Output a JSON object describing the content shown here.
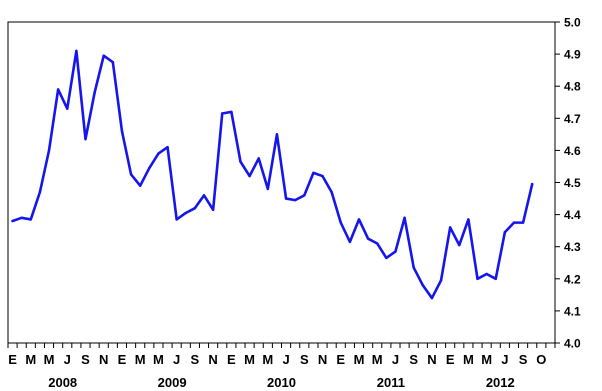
{
  "chart_data": {
    "type": "line",
    "title": "",
    "xlabel": "",
    "ylabel": "",
    "ylim": [
      4.0,
      5.0
    ],
    "y_ticks": [
      "4.0",
      "4.1",
      "4.2",
      "4.3",
      "4.4",
      "4.5",
      "4.6",
      "4.7",
      "4.8",
      "4.9",
      "5.0"
    ],
    "y_axis_side": "right",
    "grid": false,
    "line_color": "#1515ee",
    "month_labels": [
      "E",
      "M",
      "M",
      "J",
      "S",
      "N",
      "E",
      "M",
      "M",
      "J",
      "S",
      "N",
      "E",
      "M",
      "M",
      "J",
      "S",
      "N",
      "E",
      "M",
      "M",
      "J",
      "S",
      "N",
      "E",
      "M",
      "M",
      "J",
      "S",
      "O"
    ],
    "year_labels": [
      "2008",
      "2009",
      "2010",
      "2011",
      "2012"
    ],
    "series": [
      {
        "values": [
          4.38,
          4.39,
          4.385,
          4.47,
          4.6,
          4.79,
          4.73,
          4.91,
          4.635,
          4.78,
          4.895,
          4.875,
          4.66,
          4.525,
          4.49,
          4.545,
          4.59,
          4.61,
          4.385,
          4.405,
          4.42,
          4.46,
          4.415,
          4.715,
          4.72,
          4.565,
          4.52,
          4.575,
          4.48,
          4.65,
          4.45,
          4.445,
          4.46,
          4.53,
          4.52,
          4.47,
          4.375,
          4.315,
          4.385,
          4.325,
          4.31,
          4.265,
          4.285,
          4.39,
          4.235,
          4.18,
          4.14,
          4.195,
          4.36,
          4.305,
          4.385,
          4.2,
          4.215,
          4.2,
          4.345,
          4.375,
          4.375,
          4.495
        ]
      }
    ]
  }
}
